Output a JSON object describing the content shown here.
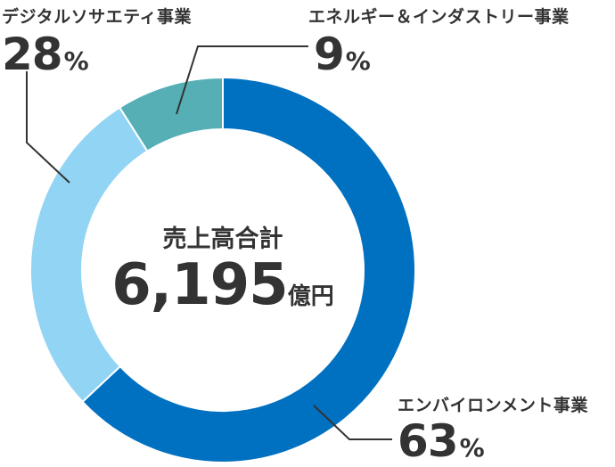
{
  "chart_data": {
    "type": "pie",
    "donut": true,
    "center": {
      "title": "売上高合計",
      "value": "6,195",
      "unit": "億円"
    },
    "slices": [
      {
        "label": "エンバイロンメント事業",
        "value": 63,
        "display": "63",
        "unit": "%",
        "color": "#0071c1"
      },
      {
        "label": "デジタルソサエティ事業",
        "value": 28,
        "display": "28",
        "unit": "%",
        "color": "#92d4f4"
      },
      {
        "label": "エネルギー＆インダストリー事業",
        "value": 9,
        "display": "9",
        "unit": "%",
        "color": "#55afb5"
      }
    ]
  }
}
